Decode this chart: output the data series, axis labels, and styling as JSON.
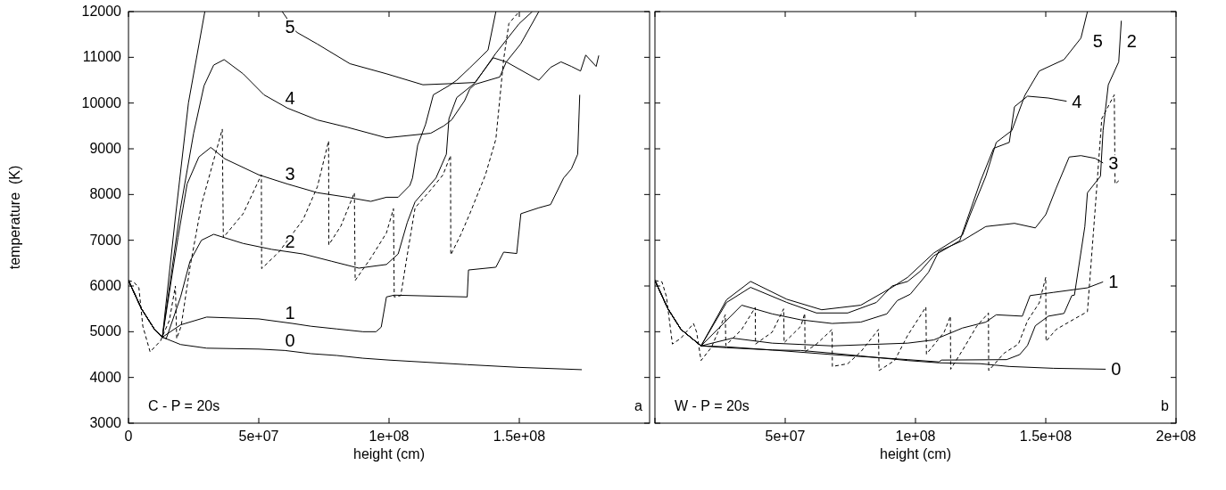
{
  "chart_data": [
    {
      "type": "line",
      "xlabel": "height (cm)",
      "ylabel": "temperature  (K)",
      "xlim": [
        0,
        200000000.0
      ],
      "ylim": [
        3000,
        12000
      ],
      "xticks": [
        0,
        {
          "value": 50000000.0,
          "label": "5e+07"
        },
        {
          "value": 100000000.0,
          "label": "1e+08"
        },
        {
          "value": 150000000.0,
          "label": "1.5e+08"
        }
      ],
      "yticks": [
        3000,
        4000,
        5000,
        6000,
        7000,
        8000,
        9000,
        10000,
        11000,
        12000
      ],
      "marker": "none",
      "series": [
        {
          "name": "0",
          "color": "#000000",
          "line_style": "solid",
          "x": [
            0,
            5000000.0,
            10000000.0,
            13000000.0,
            20000000.0,
            30000000.0,
            50000000.0,
            60000000.0,
            70000000.0,
            80000000.0,
            90000000.0,
            100000000.0,
            130000000.0,
            150000000.0,
            174000000.0
          ],
          "values": [
            6120,
            5500,
            5050,
            4880,
            4720,
            4640,
            4620,
            4590,
            4520,
            4480,
            4420,
            4380,
            4280,
            4220,
            4170
          ]
        },
        {
          "name": "1",
          "color": "#000000",
          "line_style": "solid",
          "x": [
            0,
            5000000.0,
            10000000.0,
            13000000.0,
            20000000.0,
            30000000.0,
            50000000.0,
            63000000.0,
            70000000.0,
            80000000.0,
            90000000.0,
            95000000.0,
            97000000.0,
            99000000.0,
            102000000.0,
            130000000.0,
            130500000.0,
            141000000.0,
            144000000.0,
            149000000.0,
            150600000.0,
            157500000.0,
            162000000.0,
            167000000.0,
            170000000.0,
            172400000.0,
            173200000.0
          ],
          "values": [
            6120,
            5500,
            5050,
            4880,
            5150,
            5320,
            5280,
            5180,
            5120,
            5060,
            5000,
            5000,
            5100,
            5760,
            5800,
            5760,
            6350,
            6410,
            6740,
            6710,
            7580,
            7710,
            7780,
            8360,
            8560,
            8880,
            10180
          ]
        },
        {
          "name": "2",
          "color": "#000000",
          "line_style": "solid",
          "x": [
            0,
            5000000.0,
            10000000.0,
            13000000.0,
            14500000.0,
            20000000.0,
            23600000.0,
            28000000.0,
            32700000.0,
            44000000.0,
            55000000.0,
            67000000.0,
            78000000.0,
            88400000.0,
            99000000.0,
            103500000.0,
            107000000.0,
            110000000.0,
            114000000.0,
            118000000.0,
            122000000.0,
            123000000.0,
            126000000.0,
            133000000.0,
            141000000.0,
            150000000.0,
            155000000.0
          ],
          "values": [
            6120,
            5500,
            5050,
            4880,
            4850,
            5760,
            6540,
            7000,
            7130,
            6930,
            6800,
            6700,
            6540,
            6390,
            6470,
            6700,
            7390,
            7840,
            8100,
            8360,
            8880,
            9660,
            10120,
            10440,
            11090,
            11740,
            12000
          ]
        },
        {
          "name": "3",
          "color": "#000000",
          "line_style": "solid",
          "x": [
            0,
            5000000.0,
            10000000.0,
            13000000.0,
            19000000.0,
            22500000.0,
            27000000.0,
            31600000.0,
            37000000.0,
            50000000.0,
            61000000.0,
            72500000.0,
            84000000.0,
            93000000.0,
            99000000.0,
            103500000.0,
            108000000.0,
            109000000.0,
            111000000.0,
            114000000.0,
            117000000.0,
            123000000.0,
            126000000.0,
            131000000.0,
            138000000.0,
            141000000.0
          ],
          "values": [
            6120,
            5500,
            5050,
            4880,
            7060,
            8230,
            8820,
            9030,
            8780,
            8430,
            8230,
            8040,
            7940,
            7850,
            7940,
            7940,
            8200,
            8360,
            9080,
            9530,
            10180,
            10380,
            10500,
            10770,
            11160,
            12000
          ]
        },
        {
          "name": "4",
          "color": "#000000",
          "line_style": "solid",
          "x": [
            0,
            5000000.0,
            10000000.0,
            13000000.0,
            20000000.0,
            25000000.0,
            29000000.0,
            32700000.0,
            36700000.0,
            44000000.0,
            52000000.0,
            61000000.0,
            72500000.0,
            84000000.0,
            99000000.0,
            116000000.0,
            121000000.0,
            124000000.0,
            129000000.0,
            131000000.0,
            133000000.0,
            142500000.0,
            145000000.0,
            150500000.0,
            157500000.0
          ],
          "values": [
            6120,
            5500,
            5050,
            4880,
            7710,
            9340,
            10380,
            10830,
            10950,
            10640,
            10180,
            9890,
            9630,
            9470,
            9240,
            9340,
            9500,
            9630,
            10050,
            10310,
            10410,
            10570,
            10900,
            11290,
            12000
          ]
        },
        {
          "name": "5",
          "color": "#000000",
          "line_style": "solid",
          "x": [
            0,
            5000000.0,
            10000000.0,
            13000000.0,
            18000000.0,
            23000000.0,
            29300000.0,
            44000000.0,
            59000000.0,
            64500000.0,
            72500000.0,
            85000000.0,
            99000000.0,
            113000000.0,
            126000000.0,
            133000000.0,
            140000000.0,
            145000000.0,
            157500000.0,
            162000000.0,
            166000000.0,
            170000000.0,
            173500000.0,
            175500000.0,
            179500000.0,
            180500000.0
          ],
          "values": [
            6120,
            5500,
            5050,
            4880,
            7500,
            10000,
            12000,
            null,
            12000,
            11550,
            11290,
            10860,
            10640,
            10400,
            10430,
            10450,
            10990,
            10900,
            10500,
            10780,
            10900,
            10800,
            10700,
            11050,
            10800,
            11040
          ]
        },
        {
          "color": "#000000",
          "line_style": "dashed",
          "x": [
            0,
            2000000.0,
            4000000.0,
            5500000.0,
            8300000.0,
            12300000.0,
            15700000.0,
            18000000.0,
            18500000.0,
            20200000.0,
            23600000.0,
            28000000.0,
            32700000.0,
            36000000.0,
            36400000.0,
            44000000.0,
            51000000.0,
            51100000.0,
            57700000.0,
            67000000.0,
            72500000.0,
            76800000.0,
            76900000.0,
            81600000.0,
            86700000.0,
            87000000.0,
            93000000.0,
            99000000.0,
            101700000.0,
            102000000.0,
            104500000.0,
            107000000.0,
            110000000.0,
            116000000.0,
            120700000.0,
            123600000.0,
            123700000.0,
            127600000.0,
            131000000.0,
            137000000.0,
            141000000.0,
            144000000.0,
            146000000.0,
            150000000.0
          ],
          "values": [
            6120,
            6090,
            5960,
            5120,
            4560,
            4800,
            5250,
            6000,
            4850,
            5120,
            6410,
            7780,
            8750,
            9430,
            7060,
            7580,
            8430,
            6380,
            6740,
            7450,
            8170,
            9170,
            6900,
            7320,
            8040,
            6120,
            6610,
            7160,
            7690,
            5760,
            5790,
            6680,
            7710,
            8100,
            8430,
            8850,
            6680,
            7130,
            7580,
            8430,
            9210,
            10960,
            11740,
            12000
          ]
        }
      ],
      "annotations": [
        "C - P = 20s",
        "a"
      ]
    },
    {
      "type": "line",
      "xlabel": "height (cm)",
      "xlim": [
        0,
        200000000.0
      ],
      "ylim": [
        3000,
        12000
      ],
      "tick_labels": "x",
      "xticks": [
        {
          "value": 0,
          "label": null
        },
        {
          "value": 50000000.0,
          "label": "5e+07"
        },
        {
          "value": 100000000.0,
          "label": "1e+08"
        },
        {
          "value": 150000000.0,
          "label": "1.5e+08"
        },
        {
          "value": 200000000.0,
          "label": "2e+08"
        }
      ],
      "yticks": [
        3000,
        4000,
        5000,
        6000,
        7000,
        8000,
        9000,
        10000,
        11000,
        12000
      ],
      "marker": "none",
      "series": [
        {
          "name": "0",
          "color": "#000000",
          "line_style": "solid",
          "x": [
            0,
            5000000.0,
            10000000.0,
            17700000.0,
            27500000.0,
            45000000.0,
            56000000.0,
            68000000.0,
            79000000.0,
            97000000.0,
            109000000.0,
            125000000.0,
            136000000.0,
            153000000.0,
            173000000.0
          ],
          "values": [
            6120,
            5500,
            5050,
            4690,
            4650,
            4600,
            4590,
            4530,
            4470,
            4370,
            4320,
            4300,
            4240,
            4200,
            4180
          ]
        },
        {
          "name": "1",
          "color": "#000000",
          "line_style": "solid",
          "x": [
            0,
            5000000.0,
            10000000.0,
            17700000.0,
            29800000.0,
            45000000.0,
            68000000.0,
            97000000.0,
            107000000.0,
            118000000.0,
            127000000.0,
            131000000.0,
            141000000.0,
            144000000.0,
            153000000.0,
            166000000.0,
            172000000.0
          ],
          "values": [
            6120,
            5500,
            5050,
            4690,
            4860,
            4750,
            4690,
            4750,
            4820,
            5080,
            5210,
            5370,
            5340,
            5790,
            5860,
            5960,
            6090
          ]
        },
        {
          "name": "2",
          "color": "#000000",
          "line_style": "solid",
          "x": [
            0,
            5000000.0,
            10000000.0,
            17700000.0,
            27500000.0,
            45000000.0,
            68000000.0,
            97000000.0,
            109000000.0,
            110000000.0,
            135000000.0,
            140000000.0,
            143000000.0,
            146000000.0,
            151000000.0,
            157000000.0,
            160000000.0,
            161000000.0,
            165000000.0,
            166000000.0,
            171000000.0,
            172000000.0,
            174000000.0,
            178000000.0,
            179000000.0
          ],
          "values": [
            6120,
            5500,
            5050,
            4690,
            4670,
            4600,
            4500,
            4390,
            4340,
            4380,
            4390,
            4500,
            4700,
            5130,
            5340,
            5400,
            5790,
            5800,
            7300,
            8040,
            8400,
            9400,
            10400,
            10900,
            11800
          ]
        },
        {
          "name": "3",
          "color": "#000000",
          "line_style": "solid",
          "x": [
            0,
            5000000.0,
            10000000.0,
            17700000.0,
            33300000.0,
            45000000.0,
            56000000.0,
            68000000.0,
            79000000.0,
            89000000.0,
            93000000.0,
            98000000.0,
            105000000.0,
            109000000.0,
            118000000.0,
            127000000.0,
            138000000.0,
            146000000.0,
            150000000.0,
            154000000.0,
            159000000.0,
            163500000.0,
            169000000.0,
            172000000.0
          ],
          "values": [
            6120,
            5500,
            5050,
            4690,
            5580,
            5390,
            5260,
            5180,
            5210,
            5390,
            5680,
            5820,
            6300,
            6760,
            6990,
            7300,
            7370,
            7270,
            7560,
            8140,
            8820,
            8850,
            8790,
            8690
          ]
        },
        {
          "name": "4",
          "color": "#000000",
          "line_style": "solid",
          "x": [
            0,
            5000000.0,
            10000000.0,
            17700000.0,
            27500000.0,
            36700000.0,
            50600000.0,
            62000000.0,
            74000000.0,
            85000000.0,
            91000000.0,
            97000000.0,
            102000000.0,
            107000000.0,
            117000000.0,
            125000000.0,
            130000000.0,
            136000000.0,
            138000000.0,
            143000000.0,
            151000000.0,
            158000000.0
          ],
          "values": [
            6120,
            5500,
            5050,
            4690,
            5640,
            5970,
            5640,
            5410,
            5410,
            5640,
            6000,
            6100,
            6330,
            6660,
            6990,
            8300,
            9010,
            9140,
            9920,
            10150,
            10110,
            10040
          ]
        },
        {
          "name": "5",
          "color": "#000000",
          "line_style": "solid",
          "x": [
            0,
            5000000.0,
            10000000.0,
            17700000.0,
            27500000.0,
            36700000.0,
            50600000.0,
            64000000.0,
            79000000.0,
            91000000.0,
            97000000.0,
            107000000.0,
            118000000.0,
            121000000.0,
            127000000.0,
            131000000.0,
            137000000.0,
            142000000.0,
            147500000.0,
            157000000.0,
            163500000.0,
            166000000.0
          ],
          "values": [
            6120,
            5500,
            5050,
            4690,
            5700,
            6100,
            5710,
            5480,
            5580,
            5970,
            6190,
            6720,
            7110,
            7560,
            8400,
            9140,
            9400,
            10170,
            10700,
            10950,
            11420,
            12000
          ]
        },
        {
          "color": "#000000",
          "line_style": "dashed",
          "x": [
            0,
            2700000.0,
            4400000.0,
            6700000.0,
            10000000.0,
            14800000.0,
            16000000.0,
            17700000.0,
            21700000.0,
            27000000.0,
            27200000.0,
            33300000.0,
            38500000.0,
            38600000.0,
            45000000.0,
            49400000.0,
            49600000.0,
            56000000.0,
            57500000.0,
            57600000.0,
            62000000.0,
            68000000.0,
            68100000.0,
            74000000.0,
            79000000.0,
            85800000.0,
            86000000.0,
            92000000.0,
            97000000.0,
            104000000.0,
            104200000.0,
            111000000.0,
            113400000.0,
            113500000.0,
            118000000.0,
            123500000.0,
            128000000.0,
            128100000.0,
            134000000.0,
            139500000.0,
            143000000.0,
            147500000.0,
            150000000.0,
            150100000.0,
            154000000.0,
            161000000.0,
            166000000.0,
            169000000.0,
            171500000.0,
            176300000.0,
            176600000.0,
            178000000.0
          ],
          "values": [
            6120,
            6090,
            5770,
            4730,
            4860,
            5180,
            4990,
            4370,
            4660,
            5370,
            4700,
            5050,
            5530,
            4730,
            4990,
            5500,
            4760,
            5120,
            5400,
            4560,
            4730,
            5050,
            4240,
            4300,
            4560,
            5050,
            4150,
            4370,
            4920,
            5540,
            4510,
            4990,
            5340,
            4180,
            4590,
            5120,
            5410,
            4150,
            4530,
            4730,
            5240,
            5630,
            6190,
            4790,
            5050,
            5280,
            5440,
            7710,
            9660,
            10180,
            8230,
            8300
          ]
        }
      ],
      "annotations": [
        "W - P = 20s",
        "b"
      ]
    }
  ]
}
